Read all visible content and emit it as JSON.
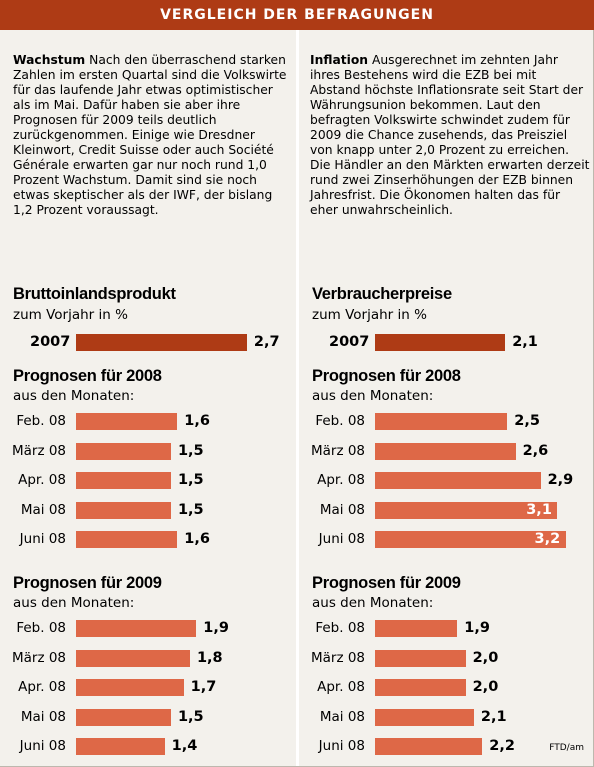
{
  "banner": "VERGLEICH DER BEFRAGUNGEN",
  "text_left": {
    "lead": "Wachstum",
    "body": " Nach den überraschend starken Zahlen im ersten Quartal sind die Volks­wirte für das laufende Jahr etwas opti­mistischer als im Mai. Dafür haben sie aber ihre Prognosen für 2009 teils deutlich zurückgenommen. Einige wie Dresdner Kleinwort, Credit Suisse oder auch Société Générale erwarten gar nur noch rund 1,0 Prozent Wachstum. Damit sind sie noch etwas skeptischer als der IWF, der bislang 1,2 Prozent voraussagt."
  },
  "text_right": {
    "lead": "Inflation",
    "body": " Ausgerechnet im zehnten Jahr ihres Bestehens wird die EZB bei mit Abstand höchste Inflationsrate seit Start der Währungsunion bekommen. Laut den befragten Volkswirte schwindet zudem für 2009 die Chance zusehends, das Preisziel von knapp unter 2,0 Prozent zu erreichen. Die Händler an den Märkten erwarten der­zeit rund zwei Zinserhöhungen der EZB binnen Jahresfrist. Die Ökonomen halten das für eher unwahrscheinlich."
  },
  "credit": "FTD/am",
  "chart_data": [
    {
      "type": "bar",
      "title": "Bruttoinlandsprodukt",
      "subtitle": "zum Vorjahr in %",
      "current": {
        "label": "2007",
        "value": 2.7,
        "value_label": "2,7"
      },
      "groups": [
        {
          "title": "Prognosen für 2008",
          "subtitle": "aus den Monaten:",
          "categories": [
            "Feb. 08",
            "März 08",
            "Apr. 08",
            "Mai 08",
            "Juni 08"
          ],
          "values": [
            1.6,
            1.5,
            1.5,
            1.5,
            1.6
          ],
          "value_labels": [
            "1,6",
            "1,5",
            "1,5",
            "1,5",
            "1,6"
          ]
        },
        {
          "title": "Prognosen für 2009",
          "subtitle": "aus den Monaten:",
          "categories": [
            "Feb. 08",
            "März 08",
            "Apr. 08",
            "Mai 08",
            "Juni 08"
          ],
          "values": [
            1.9,
            1.8,
            1.7,
            1.5,
            1.4
          ],
          "value_labels": [
            "1,9",
            "1,8",
            "1,7",
            "1,5",
            "1,4"
          ]
        }
      ],
      "colors": {
        "current": "#ae3b15",
        "forecast": "#de6847"
      }
    },
    {
      "type": "bar",
      "title": "Verbraucherpreise",
      "subtitle": "zum Vorjahr in %",
      "current": {
        "label": "2007",
        "value": 2.1,
        "value_label": "2,1"
      },
      "groups": [
        {
          "title": "Prognosen für 2008",
          "subtitle": "aus den Monaten:",
          "categories": [
            "Feb. 08",
            "März 08",
            "Apr. 08",
            "Mai 08",
            "Juni 08"
          ],
          "values": [
            2.5,
            2.6,
            2.9,
            3.1,
            3.2
          ],
          "value_labels": [
            "2,5",
            "2,6",
            "2,9",
            "3,1",
            "3,2"
          ]
        },
        {
          "title": "Prognosen für 2009",
          "subtitle": "aus den Monaten:",
          "categories": [
            "Feb. 08",
            "März 08",
            "Apr. 08",
            "Mai 08",
            "Juni 08"
          ],
          "values": [
            1.9,
            2.0,
            2.0,
            2.1,
            2.2
          ],
          "value_labels": [
            "1,9",
            "2,0",
            "2,0",
            "2,1",
            "2,2"
          ]
        }
      ],
      "colors": {
        "current": "#ae3b15",
        "forecast": "#de6847"
      }
    }
  ]
}
